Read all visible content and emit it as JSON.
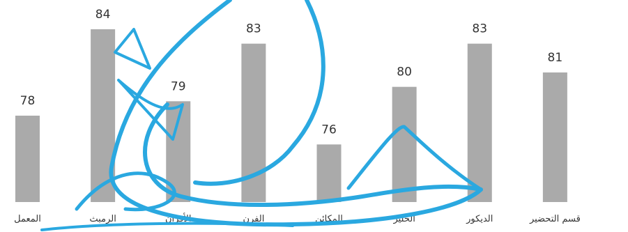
{
  "chart_data": {
    "type": "bar",
    "categories": [
      "المعمل",
      "الرمبث",
      "الأفران",
      "الفرن",
      "المكائن",
      "الحليز",
      "الديكور",
      "قسم التحضير"
    ],
    "values": [
      78,
      84,
      79,
      83,
      76,
      80,
      83,
      81
    ],
    "ylim": [
      72,
      86
    ],
    "grid": false,
    "bar_color": "#aaaaaa",
    "watermark_color": "#2aa8e0"
  }
}
